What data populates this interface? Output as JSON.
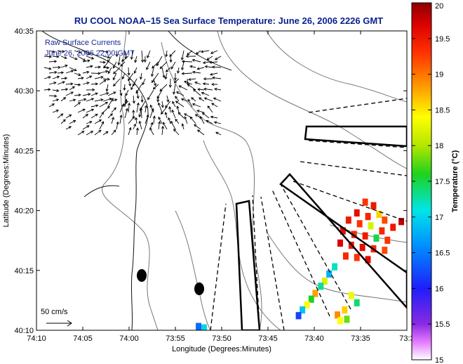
{
  "chart_data": {
    "type": "heatmap",
    "title": "RU COOL  NOAA–15  Sea Surface Temperature:  June 26, 2006 2226 GMT",
    "xlabel": "Longitude (Degrees:Minutes)",
    "ylabel": "Latitude (Degrees:Minutes)",
    "x_ticks": [
      "74:10",
      "74:05",
      "74:00",
      "73:55",
      "73:50",
      "73:45",
      "73:40",
      "73:35",
      "73:3"
    ],
    "y_ticks": [
      "40:10",
      "40:15",
      "40:20",
      "40:25",
      "40:30",
      "40:35"
    ],
    "xlim": [
      -74.1667,
      -73.5
    ],
    "ylim": [
      40.1667,
      40.5833
    ],
    "annotation_lines": [
      "Raw Surface Currents",
      "June 26, 2006 22:00 GMT"
    ],
    "vector_scale_label": "50 cm/s",
    "colorbar": {
      "label": "Temperature (°C)",
      "min": 15,
      "max": 20,
      "ticks": [
        "15",
        "15.5",
        "16",
        "16.5",
        "17",
        "17.5",
        "18",
        "18.5",
        "19",
        "19.5",
        "20"
      ]
    },
    "sst_cells": [
      {
        "lon": -73.575,
        "lat": 40.345,
        "t": 19.3
      },
      {
        "lon": -73.56,
        "lat": 40.34,
        "t": 19.5
      },
      {
        "lon": -73.59,
        "lat": 40.33,
        "t": 19.6
      },
      {
        "lon": -73.57,
        "lat": 40.325,
        "t": 19.4
      },
      {
        "lon": -73.55,
        "lat": 40.328,
        "t": 18.6
      },
      {
        "lon": -73.54,
        "lat": 40.32,
        "t": 19.2
      },
      {
        "lon": -73.605,
        "lat": 40.32,
        "t": 19.5
      },
      {
        "lon": -73.585,
        "lat": 40.315,
        "t": 19.3
      },
      {
        "lon": -73.565,
        "lat": 40.312,
        "t": 18.2
      },
      {
        "lon": -73.545,
        "lat": 40.305,
        "t": 19.4
      },
      {
        "lon": -73.525,
        "lat": 40.31,
        "t": 19.5
      },
      {
        "lon": -73.51,
        "lat": 40.318,
        "t": 19.8
      },
      {
        "lon": -73.615,
        "lat": 40.305,
        "t": 19.6
      },
      {
        "lon": -73.595,
        "lat": 40.3,
        "t": 19.4
      },
      {
        "lon": -73.575,
        "lat": 40.298,
        "t": 19.5
      },
      {
        "lon": -73.555,
        "lat": 40.295,
        "t": 17.5
      },
      {
        "lon": -73.535,
        "lat": 40.292,
        "t": 19.3
      },
      {
        "lon": -73.62,
        "lat": 40.288,
        "t": 19.7
      },
      {
        "lon": -73.6,
        "lat": 40.285,
        "t": 19.5
      },
      {
        "lon": -73.58,
        "lat": 40.282,
        "t": 19.6
      },
      {
        "lon": -73.56,
        "lat": 40.28,
        "t": 19.4
      },
      {
        "lon": -73.54,
        "lat": 40.278,
        "t": 19.2
      },
      {
        "lon": -73.61,
        "lat": 40.27,
        "t": 19.4
      },
      {
        "lon": -73.59,
        "lat": 40.268,
        "t": 19.3
      },
      {
        "lon": -73.57,
        "lat": 40.265,
        "t": 19.6
      },
      {
        "lon": -73.63,
        "lat": 40.255,
        "t": 17.2
      },
      {
        "lon": -73.64,
        "lat": 40.245,
        "t": 16.8
      },
      {
        "lon": -73.648,
        "lat": 40.235,
        "t": 18.2
      },
      {
        "lon": -73.655,
        "lat": 40.228,
        "t": 17.3
      },
      {
        "lon": -73.665,
        "lat": 40.218,
        "t": 18.8
      },
      {
        "lon": -73.672,
        "lat": 40.21,
        "t": 17.6
      },
      {
        "lon": -73.68,
        "lat": 40.202,
        "t": 18.4
      },
      {
        "lon": -73.688,
        "lat": 40.195,
        "t": 16.9
      },
      {
        "lon": -73.695,
        "lat": 40.187,
        "t": 16.2
      },
      {
        "lon": -73.6,
        "lat": 40.215,
        "t": 18.3
      },
      {
        "lon": -73.59,
        "lat": 40.205,
        "t": 17.4
      },
      {
        "lon": -73.612,
        "lat": 40.195,
        "t": 18.6
      },
      {
        "lon": -73.625,
        "lat": 40.188,
        "t": 18.9
      },
      {
        "lon": -73.62,
        "lat": 40.18,
        "t": 18.4
      },
      {
        "lon": -73.608,
        "lat": 40.182,
        "t": 17.8
      },
      {
        "lon": -73.875,
        "lat": 40.172,
        "t": 16.4
      },
      {
        "lon": -73.865,
        "lat": 40.17,
        "t": 17.0
      }
    ]
  }
}
